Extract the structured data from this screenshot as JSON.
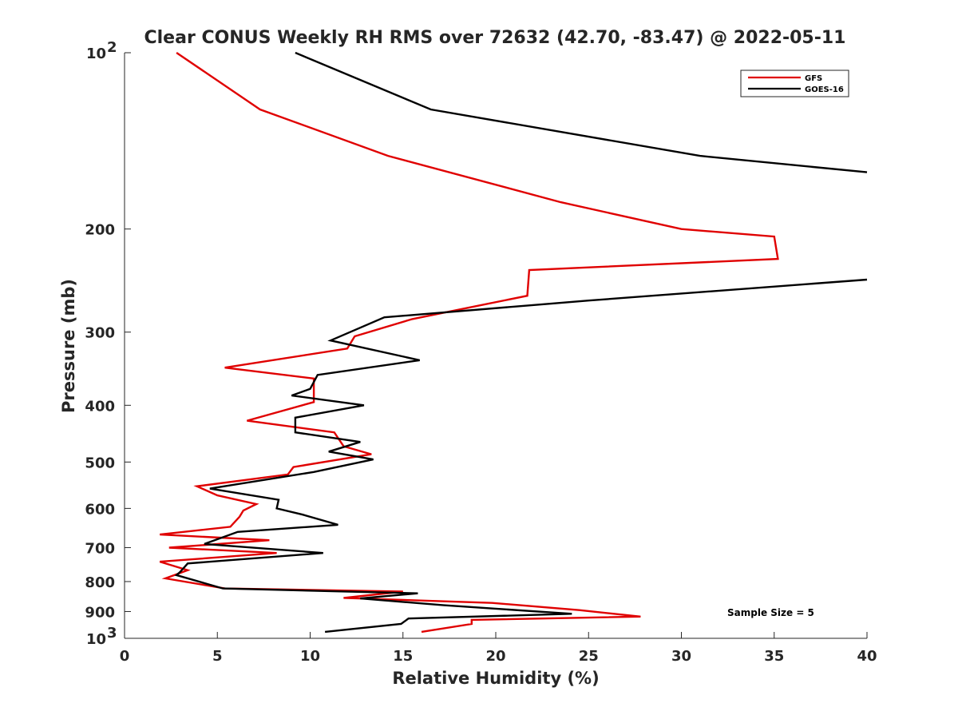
{
  "chart_data": {
    "type": "line",
    "title": "Clear CONUS Weekly RH RMS over 72632 (42.70, -83.47) @ 2022-05-11",
    "xlabel": "Relative Humidity (%)",
    "ylabel": "Pressure (mb)",
    "xlim": [
      0,
      40
    ],
    "ylim": [
      100,
      1000
    ],
    "y_scale": "log",
    "y_reversed": true,
    "x_ticks": [
      "0",
      "5",
      "10",
      "15",
      "20",
      "25",
      "30",
      "35",
      "40"
    ],
    "y_ticks": [
      {
        "value": 100,
        "base": "10",
        "exp": "2"
      },
      {
        "value": 200,
        "label": "200"
      },
      {
        "value": 300,
        "label": "300"
      },
      {
        "value": 400,
        "label": "400"
      },
      {
        "value": 500,
        "label": "500"
      },
      {
        "value": 600,
        "label": "600"
      },
      {
        "value": 700,
        "label": "700"
      },
      {
        "value": 800,
        "label": "800"
      },
      {
        "value": 900,
        "label": "900"
      },
      {
        "value": 1000,
        "base": "10",
        "exp": "3"
      }
    ],
    "grid": false,
    "legend_position": "top-right",
    "annotation": "Sample Size = 5",
    "series": [
      {
        "name": "GFS",
        "color": "#e00000",
        "points": [
          [
            2.8,
            100
          ],
          [
            7.3,
            125
          ],
          [
            14.2,
            150
          ],
          [
            23.5,
            180
          ],
          [
            30.0,
            200
          ],
          [
            35.0,
            206
          ],
          [
            35.2,
            225
          ],
          [
            21.8,
            235
          ],
          [
            21.7,
            260
          ],
          [
            15.5,
            285
          ],
          [
            12.4,
            305
          ],
          [
            12.0,
            320
          ],
          [
            5.4,
            345
          ],
          [
            10.2,
            360
          ],
          [
            10.2,
            395
          ],
          [
            6.6,
            425
          ],
          [
            11.3,
            445
          ],
          [
            11.8,
            470
          ],
          [
            13.3,
            485
          ],
          [
            9.1,
            510
          ],
          [
            8.8,
            525
          ],
          [
            3.9,
            550
          ],
          [
            5.0,
            570
          ],
          [
            7.1,
            590
          ],
          [
            6.4,
            605
          ],
          [
            6.2,
            620
          ],
          [
            5.7,
            645
          ],
          [
            1.9,
            665
          ],
          [
            7.8,
            680
          ],
          [
            2.4,
            700
          ],
          [
            8.2,
            715
          ],
          [
            1.9,
            740
          ],
          [
            3.4,
            765
          ],
          [
            2.2,
            790
          ],
          [
            5.4,
            822
          ],
          [
            15.0,
            832
          ],
          [
            11.8,
            853
          ],
          [
            19.8,
            870
          ],
          [
            24.5,
            895
          ],
          [
            27.8,
            918
          ],
          [
            18.7,
            930
          ],
          [
            18.7,
            945
          ],
          [
            16.0,
            975
          ]
        ]
      },
      {
        "name": "GOES-16",
        "color": "#000000",
        "points": [
          [
            9.2,
            100
          ],
          [
            16.5,
            125
          ],
          [
            31.0,
            150
          ],
          [
            40.0,
            160
          ],
          [
            null,
            null
          ],
          [
            40.0,
            244
          ],
          [
            25.0,
            265
          ],
          [
            14.0,
            283
          ],
          [
            11.1,
            310
          ],
          [
            15.9,
            335
          ],
          [
            10.4,
            355
          ],
          [
            10.0,
            375
          ],
          [
            9.0,
            385
          ],
          [
            12.9,
            400
          ],
          [
            9.2,
            420
          ],
          [
            9.2,
            445
          ],
          [
            12.7,
            462
          ],
          [
            11.0,
            480
          ],
          [
            13.4,
            495
          ],
          [
            10.2,
            520
          ],
          [
            4.6,
            555
          ],
          [
            8.3,
            580
          ],
          [
            8.2,
            600
          ],
          [
            9.6,
            615
          ],
          [
            11.5,
            640
          ],
          [
            6.1,
            658
          ],
          [
            4.3,
            690
          ],
          [
            10.7,
            715
          ],
          [
            3.4,
            745
          ],
          [
            3.0,
            770
          ],
          [
            2.8,
            780
          ],
          [
            5.3,
            822
          ],
          [
            15.8,
            838
          ],
          [
            12.7,
            855
          ],
          [
            17.2,
            878
          ],
          [
            24.1,
            908
          ],
          [
            15.3,
            925
          ],
          [
            14.9,
            945
          ],
          [
            10.8,
            975
          ]
        ]
      }
    ]
  }
}
